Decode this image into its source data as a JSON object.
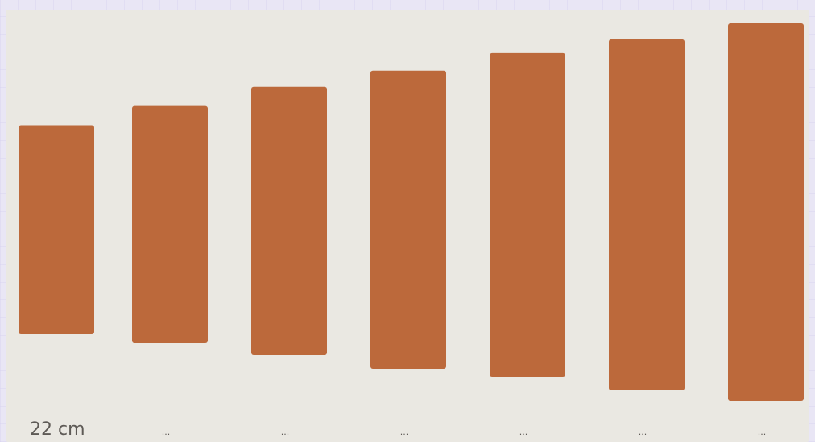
{
  "chart_data": {
    "type": "bar",
    "categories": [
      "22 cm",
      "...",
      "...",
      "...",
      "...",
      "...",
      "..."
    ],
    "values": [
      260,
      295,
      334,
      371,
      403,
      437,
      470
    ],
    "title": "",
    "xlabel": "",
    "ylabel": "",
    "grid": false,
    "legend": "none",
    "bar_color": "#bc693b",
    "background_color": "#eae8e2"
  }
}
